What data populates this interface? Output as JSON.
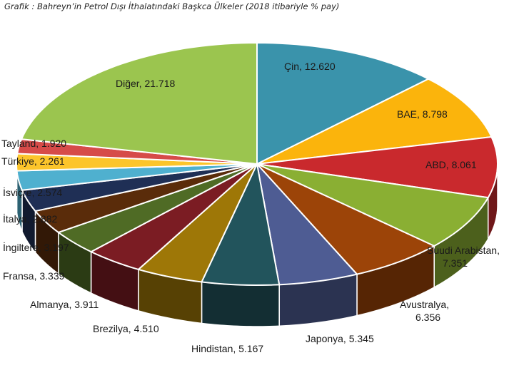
{
  "chart_data": {
    "type": "pie",
    "title": "Grafik  : Bahreyn’in Petrol Dışı İthalatındaki Başkca Ülkeler (2018 itibariyle % pay)",
    "slices": [
      {
        "label": "Çin",
        "value_text": "12.620",
        "value": 12.62,
        "color": "#3a93ab"
      },
      {
        "label": "BAE",
        "value_text": "8.798",
        "value": 8.798,
        "color": "#fbb40c"
      },
      {
        "label": "ABD",
        "value_text": "8.061",
        "value": 8.061,
        "color": "#cf2a2e"
      },
      {
        "label": "Suudi Arabistan,",
        "value_text": "7.351",
        "value": 7.351,
        "color": "#8aaf33"
      },
      {
        "label": "Avustralya,",
        "value_text": "6.356",
        "value": 6.356,
        "color": "#9c4408"
      },
      {
        "label": "Japonya",
        "value_text": "5.345",
        "value": 5.345,
        "color": "#4e5c93"
      },
      {
        "label": "Hindistan",
        "value_text": "5.167",
        "value": 5.167,
        "color": "#22545c"
      },
      {
        "label": "Brezilya",
        "value_text": "4.510",
        "value": 4.51,
        "color": "#9e7707"
      },
      {
        "label": "Almanya",
        "value_text": "3.911",
        "value": 3.911,
        "color": "#7b1c23"
      },
      {
        "label": "Fransa",
        "value_text": "3.339",
        "value": 3.339,
        "color": "#4f6b25"
      },
      {
        "label": "İngiltere",
        "value_text": "3.197",
        "value": 3.197,
        "color": "#6b2d0c"
      },
      {
        "label": "İtalya",
        "value_text": "2.882",
        "value": 2.882,
        "color": "#5a3a08"
      },
      {
        "label": "İsviçre",
        "value_text": "2.574",
        "value": 2.574,
        "color": "#1f2f55"
      },
      {
        "label": "Türkiye",
        "value_text": "2.261",
        "value": 2.261,
        "color": "#5ab4d0"
      },
      {
        "label": "Tayland",
        "value_text": "1.920",
        "value": 1.92,
        "color": "#fcc52b"
      },
      {
        "label": "Diğer",
        "value_text": "21.718",
        "value": 21.718,
        "color": "#d64b49"
      },
      {
        "label": "",
        "value_text": "",
        "value": 0,
        "color": "#9bc54f"
      }
    ],
    "legend": "none"
  }
}
